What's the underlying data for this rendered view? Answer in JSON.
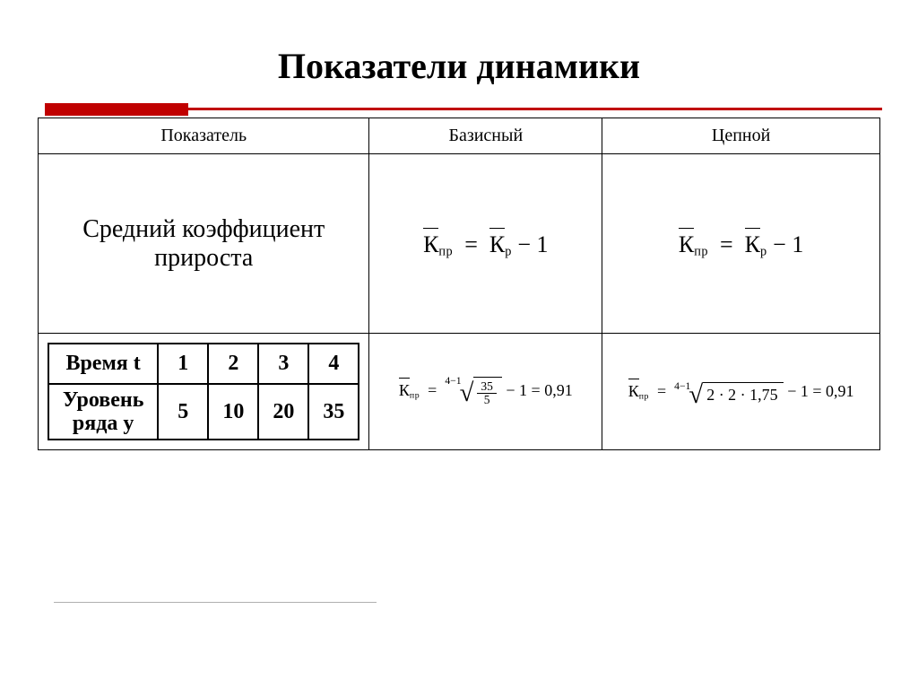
{
  "title": "Показатели динамики",
  "colors": {
    "accent": "#c00000",
    "text": "#000000",
    "bg": "#ffffff",
    "grey_line": "#b0b0b0"
  },
  "table": {
    "headers": {
      "indicator": "Показатель",
      "base": "Базисный",
      "chain": "Цепной"
    },
    "row_formula": {
      "label": "Средний коэффициент прироста",
      "base": {
        "lhs_sub": "пр",
        "rhs_sub": "р",
        "rhs_tail": " − 1"
      },
      "chain": {
        "lhs_sub": "пр",
        "rhs_sub": "р",
        "rhs_tail": "  − 1"
      }
    },
    "row_data": {
      "inner": {
        "row1_label": "Время t",
        "row1_vals": [
          "1",
          "2",
          "3",
          "4"
        ],
        "row2_label": "Уровень ряда y",
        "row2_vals": [
          "5",
          "10",
          "20",
          "35"
        ]
      },
      "base_calc": {
        "lhs_sub": "пр",
        "root_index": "4−1",
        "frac_num": "35",
        "frac_den": "5",
        "tail": " − 1 = 0,91"
      },
      "chain_calc": {
        "lhs_sub": "пр",
        "root_index": "4−1",
        "radicand": "2 · 2 · 1,75",
        "tail": " − 1 = 0,91"
      }
    }
  }
}
